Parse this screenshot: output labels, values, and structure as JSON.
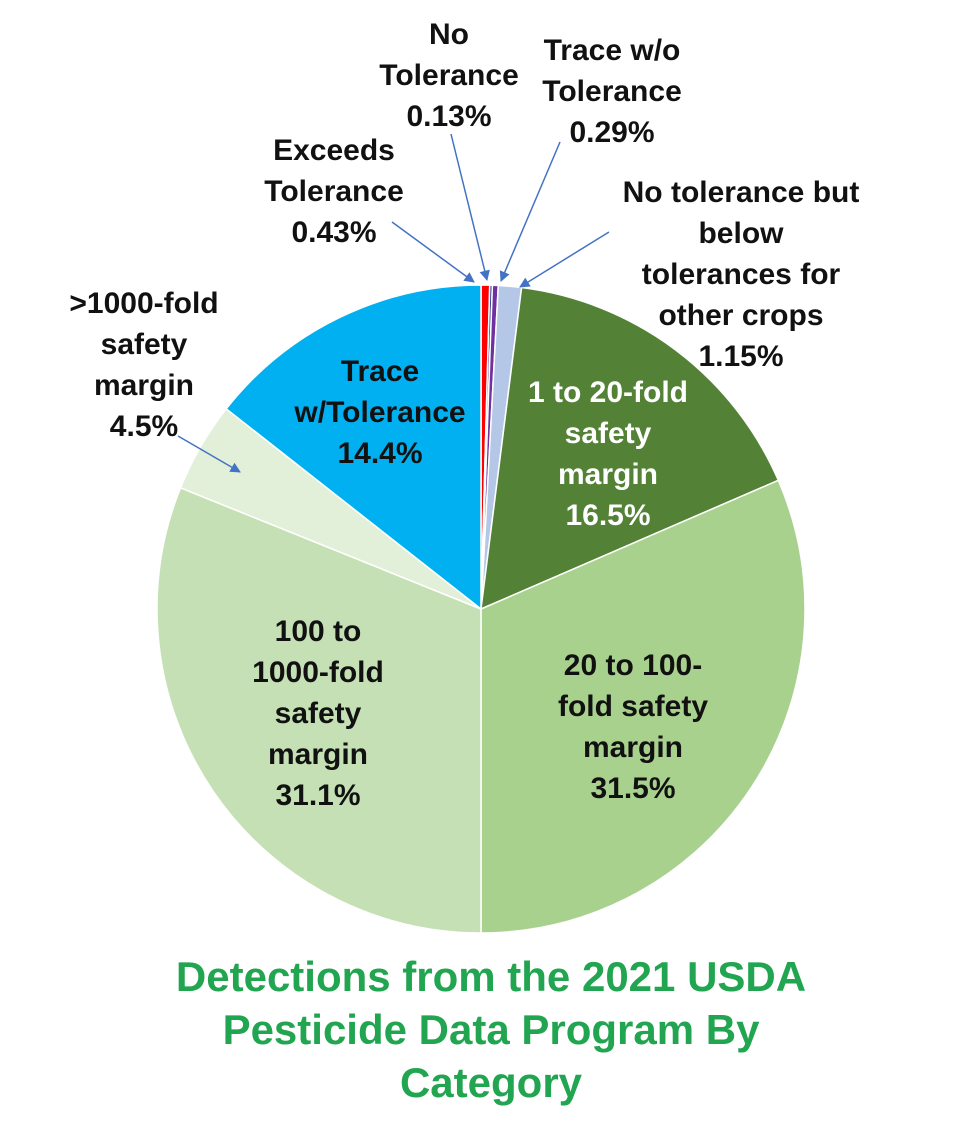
{
  "chart_data": {
    "type": "pie",
    "title_lines": [
      "Detections from the 2021 USDA",
      "Pesticide Data Program By",
      "Category"
    ],
    "slices": [
      {
        "name": "Exceeds Tolerance",
        "label_lines": [
          "Exceeds",
          "Tolerance",
          "0.43%"
        ],
        "value": 0.43,
        "color": "#ff0000",
        "label_color": "#111111"
      },
      {
        "name": "No Tolerance",
        "label_lines": [
          "No",
          "Tolerance",
          "0.13%"
        ],
        "value": 0.13,
        "color": "#2e3f9a",
        "label_color": "#111111"
      },
      {
        "name": "Trace w/o Tolerance",
        "label_lines": [
          "Trace w/o",
          "Tolerance",
          "0.29%"
        ],
        "value": 0.29,
        "color": "#7030a0",
        "label_color": "#111111"
      },
      {
        "name": "No tolerance but below tolerances for other crops",
        "label_lines": [
          "No tolerance but",
          "below",
          "tolerances for",
          "other crops",
          "1.15%"
        ],
        "value": 1.15,
        "color": "#b4c7e7",
        "label_color": "#111111"
      },
      {
        "name": "1 to 20-fold safety margin",
        "label_lines": [
          "1 to 20-fold",
          "safety",
          "margin",
          "16.5%"
        ],
        "value": 16.5,
        "color": "#538135",
        "label_color": "#ffffff"
      },
      {
        "name": "20 to 100-fold safety margin",
        "label_lines": [
          "20 to 100-",
          "fold safety",
          "margin",
          "31.5%"
        ],
        "value": 31.5,
        "color": "#a9d18e",
        "label_color": "#111111"
      },
      {
        "name": "100 to 1000-fold safety margin",
        "label_lines": [
          "100 to",
          "1000-fold",
          "safety",
          "margin",
          "31.1%"
        ],
        "value": 31.1,
        "color": "#c5e0b4",
        "label_color": "#111111"
      },
      {
        "name": ">1000-fold safety margin",
        "label_lines": [
          ">1000-fold",
          "safety",
          "margin",
          "4.5%"
        ],
        "value": 4.5,
        "color": "#e2f0d9",
        "label_color": "#111111"
      },
      {
        "name": "Trace w/Tolerance",
        "label_lines": [
          "Trace",
          "w/Tolerance",
          "14.4%"
        ],
        "value": 14.4,
        "color": "#00b0f0",
        "label_color": "#111111"
      }
    ],
    "start_angle_deg": 0,
    "direction": "clockwise",
    "leader_color": "#4472c4",
    "title_color": "#22a550"
  }
}
